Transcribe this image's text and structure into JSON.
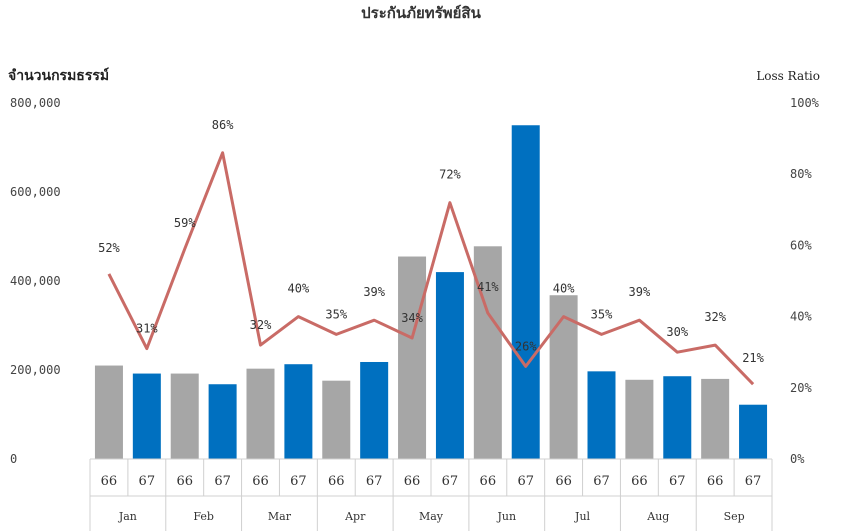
{
  "chart_data": {
    "type": "bar",
    "title": "ประกันภัยทรัพย์สิน",
    "ylabel": "จำนวนกรมธรรม์",
    "y2label": "Loss Ratio",
    "ylim": [
      0,
      800000
    ],
    "y2lim": [
      0,
      100
    ],
    "yticks": [
      "800,000",
      "600,000",
      "400,000",
      "200,000",
      "0"
    ],
    "y2ticks": [
      "100%",
      "80%",
      "60%",
      "40%",
      "20%",
      "0%"
    ],
    "months": [
      "Jan",
      "Feb",
      "Mar",
      "Apr",
      "May",
      "Jun",
      "Jul",
      "Aug",
      "Sep"
    ],
    "years": [
      "66",
      "67"
    ],
    "colors": {
      "y66": "#a6a6a6",
      "y67": "#0070c0",
      "line": "#c96b66"
    },
    "series": [
      {
        "year": "66",
        "values": [
          210000,
          192000,
          203000,
          176000,
          455000,
          478000,
          368000,
          178000,
          180000
        ]
      },
      {
        "year": "67",
        "values": [
          192000,
          168000,
          213000,
          218000,
          420000,
          750000,
          197000,
          186000,
          122000
        ]
      }
    ],
    "loss_ratio": [
      52,
      31,
      59,
      86,
      32,
      40,
      35,
      39,
      34,
      72,
      41,
      26,
      40,
      35,
      39,
      30,
      32,
      21
    ],
    "loss_ratio_labels": [
      "52%",
      "31%",
      "59%",
      "86%",
      "32%",
      "40%",
      "35%",
      "39%",
      "34%",
      "72%",
      "41%",
      "26%",
      "40%",
      "35%",
      "39%",
      "30%",
      "32%",
      "21%"
    ]
  }
}
